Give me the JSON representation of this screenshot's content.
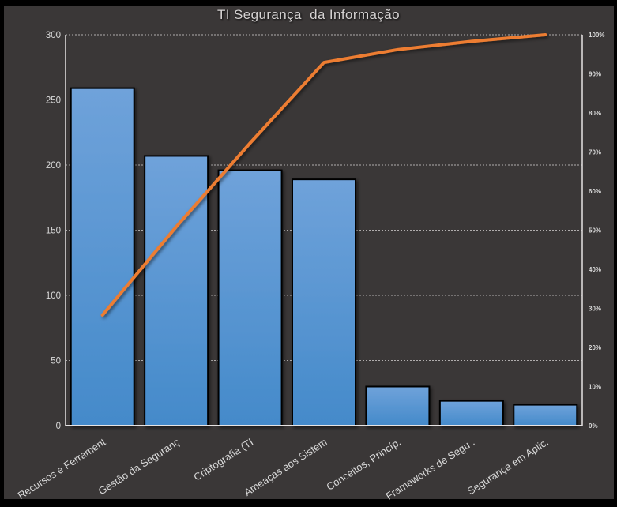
{
  "chart_data": {
    "type": "bar",
    "subtype": "pareto-combo",
    "title": "TI Segurança  da Informação",
    "categories": [
      "Recursos e Ferrament",
      "Gestão da Seguranç",
      "Criptografia (TI",
      "Ameaças aos Sistem",
      "Conceitos, Princíp.",
      "Frameworks de Segu .",
      "Segurança em Aplic."
    ],
    "series": [
      {
        "type": "bar",
        "axis": "left",
        "values": [
          259,
          207,
          196,
          189,
          30,
          19,
          16
        ]
      },
      {
        "type": "line",
        "axis": "right",
        "values_percent": [
          28.3,
          50.9,
          72.3,
          92.9,
          96.2,
          98.3,
          100
        ]
      }
    ],
    "left_axis": {
      "min": 0,
      "max": 300,
      "step": 50,
      "tick_labels": [
        "0",
        "50",
        "100",
        "150",
        "200",
        "250",
        "300"
      ]
    },
    "right_axis": {
      "min": 0,
      "max": 100,
      "step": 10,
      "tick_labels": [
        "0%",
        "10%",
        "20%",
        "30%",
        "40%",
        "50%",
        "60%",
        "70%",
        "80%",
        "90%",
        "100%"
      ]
    },
    "grid": {
      "horizontal": true,
      "style": "dotted",
      "left_axis_step": 50
    },
    "legend_position": "none"
  },
  "colors": {
    "frame": "#000000",
    "background": "#3a3737",
    "bar_fill_top": "#6fa2da",
    "bar_fill_bottom": "#448aca",
    "bar_border": "#000000",
    "line": "#ed7d31",
    "gridline": "#b0adad",
    "axis_line": "#e6e3e3",
    "text": "#d9d9d9"
  }
}
